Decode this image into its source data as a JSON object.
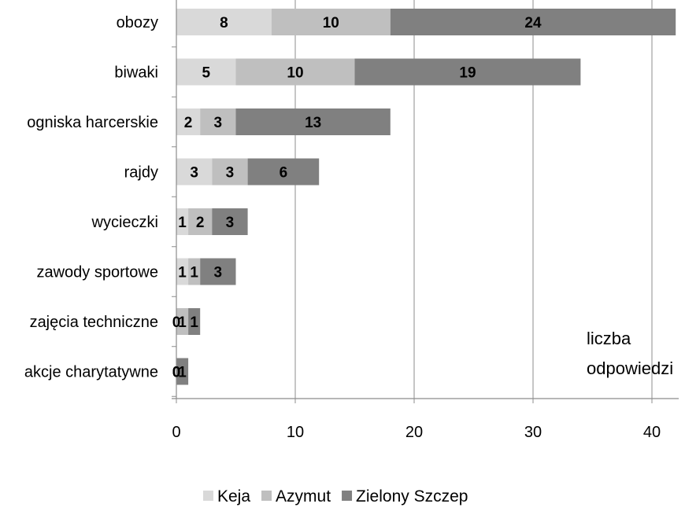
{
  "chart_data": {
    "type": "bar",
    "orientation": "horizontal",
    "stacked": true,
    "categories": [
      "obozy",
      "biwaki",
      "ogniska harcerskie",
      "rajdy",
      "wycieczki",
      "zawody sportowe",
      "zajęcia techniczne",
      "akcje charytatywne"
    ],
    "series": [
      {
        "name": "Keja",
        "color": "#d9d9d9",
        "values": [
          8,
          5,
          2,
          3,
          1,
          1,
          0,
          0
        ]
      },
      {
        "name": "Azymut",
        "color": "#bfbfbf",
        "values": [
          10,
          10,
          3,
          3,
          2,
          1,
          1,
          0
        ]
      },
      {
        "name": "Zielony Szczep",
        "color": "#808080",
        "values": [
          24,
          19,
          13,
          6,
          3,
          3,
          1,
          1
        ]
      }
    ],
    "xticks": [
      "0",
      "10",
      "20",
      "30",
      "40"
    ],
    "xlim": [
      0,
      42
    ],
    "axis_note": [
      "liczba",
      "odpowiedzi"
    ],
    "grid": "vertical",
    "legend_position": "bottom"
  }
}
